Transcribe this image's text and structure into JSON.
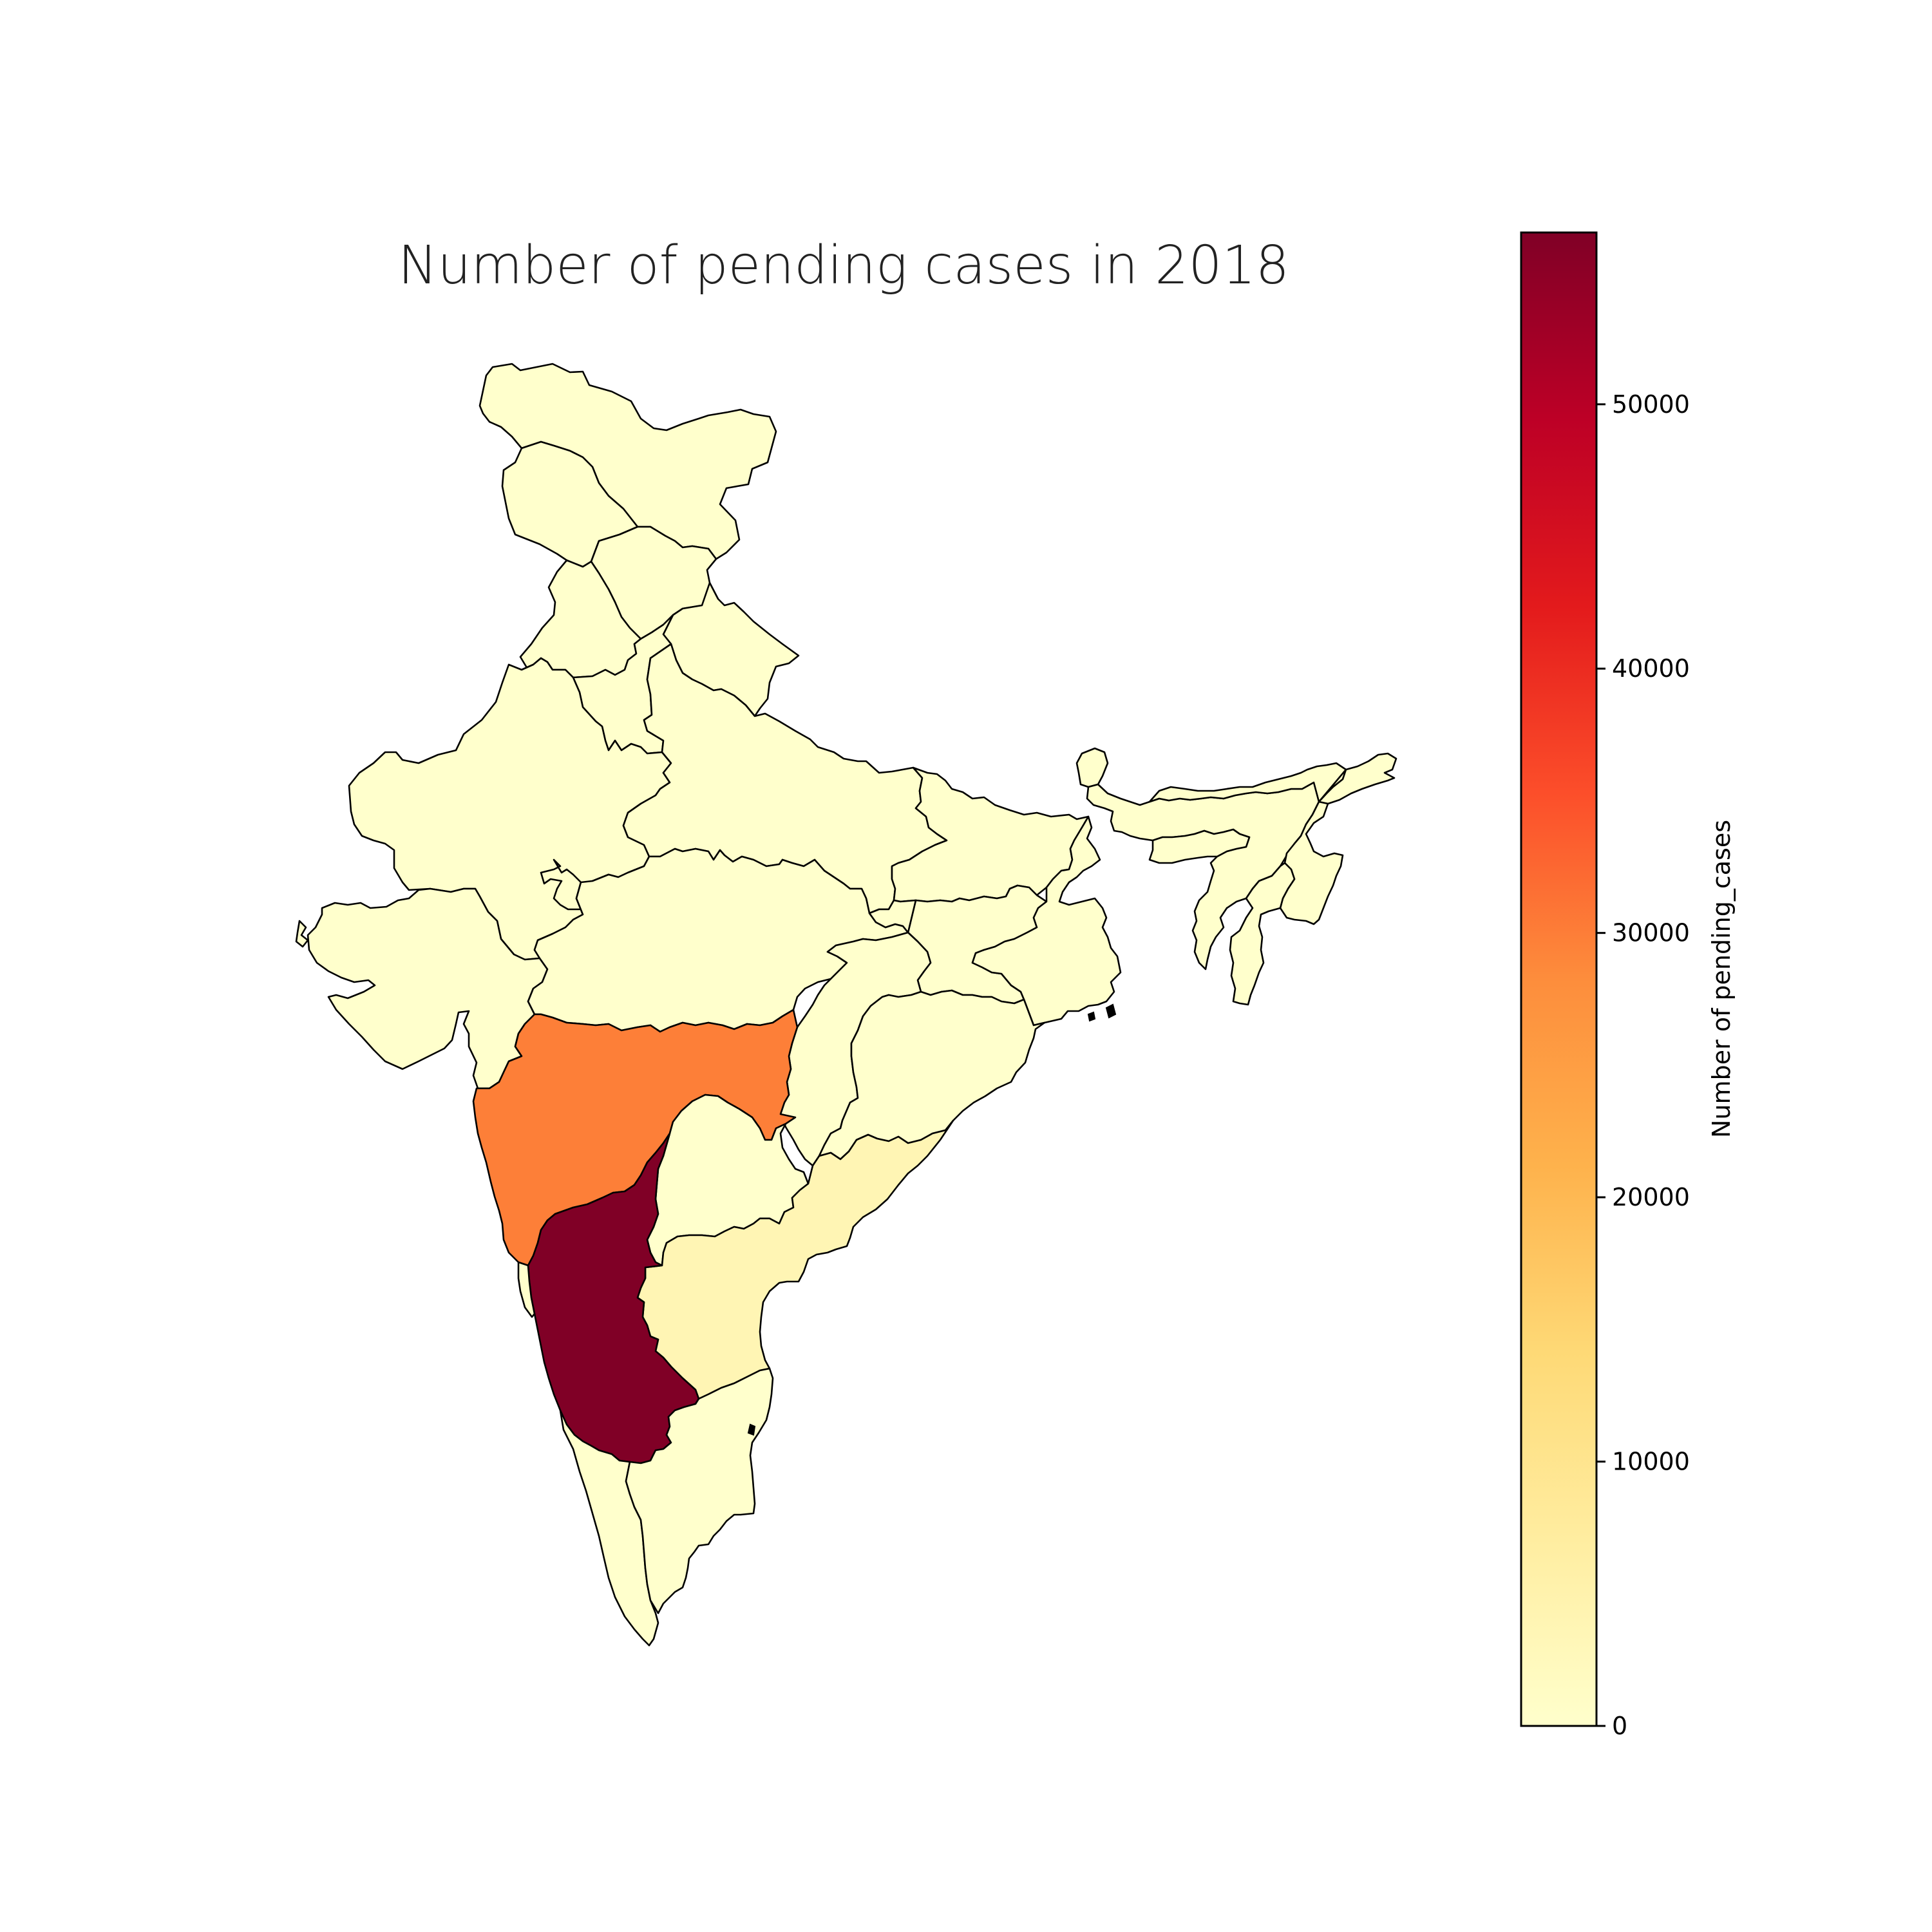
{
  "chart_data": {
    "type": "choropleth",
    "title": "Number of pending cases in 2018",
    "colorbar": {
      "label": "Number of pending_cases",
      "range": [
        0,
        56500
      ],
      "ticks": [
        "0",
        "10000",
        "20000",
        "30000",
        "40000",
        "50000"
      ],
      "tick_values": [
        0,
        10000,
        20000,
        30000,
        40000,
        50000
      ],
      "colormap": "YlOrRd",
      "stops": [
        "#ffffcc",
        "#ffeda0",
        "#fed976",
        "#feb24c",
        "#fd8d3c",
        "#fc4e2a",
        "#e31a1c",
        "#bd0026",
        "#800026"
      ],
      "placement": "right"
    },
    "regions": [
      {
        "id": "ladakh",
        "value": 0
      },
      {
        "id": "jammu-kashmir",
        "value": 0
      },
      {
        "id": "himachal",
        "value": 0
      },
      {
        "id": "punjab",
        "value": 0
      },
      {
        "id": "uttarakhand",
        "value": 0
      },
      {
        "id": "haryana",
        "value": 0
      },
      {
        "id": "rajasthan",
        "value": 0
      },
      {
        "id": "uttar-pradesh",
        "value": 0
      },
      {
        "id": "bihar",
        "value": 0
      },
      {
        "id": "gujarat",
        "value": 0
      },
      {
        "id": "madhya-pradesh",
        "value": 0
      },
      {
        "id": "jharkhand",
        "value": 0
      },
      {
        "id": "west-bengal",
        "value": 0
      },
      {
        "id": "chhattisgarh",
        "value": 0
      },
      {
        "id": "odisha",
        "value": 0
      },
      {
        "id": "maharashtra",
        "value": 29800
      },
      {
        "id": "telangana",
        "value": 0
      },
      {
        "id": "andhra-pradesh",
        "value": 3800
      },
      {
        "id": "karnataka",
        "value": 56500
      },
      {
        "id": "goa",
        "value": 0
      },
      {
        "id": "kerala",
        "value": 0
      },
      {
        "id": "tamil-nadu",
        "value": 0
      },
      {
        "id": "sikkim",
        "value": 0
      },
      {
        "id": "assam",
        "value": 0
      },
      {
        "id": "arunachal",
        "value": 0
      },
      {
        "id": "meghalaya",
        "value": 0
      },
      {
        "id": "nagaland-manipur",
        "value": 0
      },
      {
        "id": "tripura-mizoram",
        "value": 0
      }
    ]
  }
}
